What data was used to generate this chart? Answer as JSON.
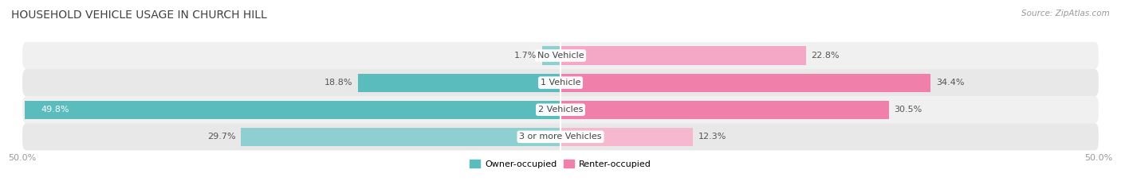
{
  "title": "HOUSEHOLD VEHICLE USAGE IN CHURCH HILL",
  "source": "Source: ZipAtlas.com",
  "categories": [
    "No Vehicle",
    "1 Vehicle",
    "2 Vehicles",
    "3 or more Vehicles"
  ],
  "owner_values": [
    1.7,
    18.8,
    49.8,
    29.7
  ],
  "renter_values": [
    22.8,
    34.4,
    30.5,
    12.3
  ],
  "owner_colors": [
    "#8ed0d1",
    "#5bbcbd",
    "#5bbcbd",
    "#8ed0d1"
  ],
  "renter_colors": [
    "#f5a8c5",
    "#f07faa",
    "#f07faa",
    "#f5b8ce"
  ],
  "row_bg_colors": [
    "#f0f0f0",
    "#e8e8e8",
    "#f0f0f0",
    "#e8e8e8"
  ],
  "axis_limit": 50.0,
  "legend_owner": "Owner-occupied",
  "legend_renter": "Renter-occupied",
  "owner_legend_color": "#5bbcbd",
  "renter_legend_color": "#f07faa",
  "title_fontsize": 10,
  "label_fontsize": 8,
  "axis_fontsize": 8,
  "source_fontsize": 7.5,
  "title_color": "#404040",
  "label_color": "#555555",
  "axis_color": "#999999"
}
